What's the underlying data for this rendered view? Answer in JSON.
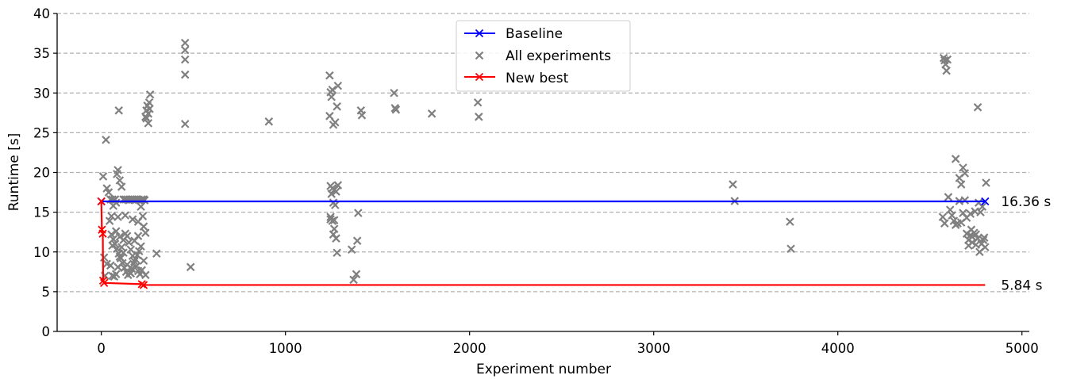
{
  "chart_data": {
    "type": "scatter",
    "xlabel": "Experiment number",
    "ylabel": "Runtime [s]",
    "xlim": [
      -240,
      5040
    ],
    "ylim": [
      0,
      40
    ],
    "x_ticks": [
      0,
      1000,
      2000,
      3000,
      4000,
      5000
    ],
    "y_ticks": [
      0,
      5,
      10,
      15,
      20,
      25,
      30,
      35,
      40
    ],
    "grid": "horizontal dashed",
    "legend_position": "top-center",
    "colors": {
      "baseline": "#0000ff",
      "all": "#808080",
      "best": "#ff0000"
    },
    "series": [
      {
        "name": "Baseline",
        "kind": "line",
        "x": [
          0,
          4800
        ],
        "y": [
          16.36,
          16.36
        ],
        "markers": [
          [
            0,
            16.36
          ],
          [
            4800,
            16.36
          ]
        ],
        "end_label": "16.36 s"
      },
      {
        "name": "All experiments",
        "kind": "scatter",
        "points": [
          [
            10,
            19.5
          ],
          [
            25,
            24.1
          ],
          [
            30,
            18.0
          ],
          [
            40,
            17.5
          ],
          [
            50,
            16.6
          ],
          [
            55,
            14.5
          ],
          [
            60,
            16.6
          ],
          [
            65,
            15.8
          ],
          [
            70,
            16.5
          ],
          [
            75,
            16.6
          ],
          [
            80,
            16.2
          ],
          [
            85,
            19.8
          ],
          [
            90,
            20.3
          ],
          [
            95,
            27.8
          ],
          [
            100,
            19.0
          ],
          [
            110,
            18.2
          ],
          [
            120,
            16.6
          ],
          [
            130,
            16.6
          ],
          [
            140,
            16.6
          ],
          [
            150,
            16.5
          ],
          [
            160,
            16.6
          ],
          [
            170,
            16.6
          ],
          [
            180,
            16.6
          ],
          [
            190,
            16.6
          ],
          [
            200,
            16.6
          ],
          [
            210,
            16.5
          ],
          [
            220,
            16.6
          ],
          [
            230,
            16.6
          ],
          [
            235,
            16.5
          ],
          [
            215,
            15.7
          ],
          [
            225,
            14.5
          ],
          [
            200,
            13.8
          ],
          [
            230,
            13.2
          ],
          [
            240,
            12.4
          ],
          [
            45,
            13.9
          ],
          [
            55,
            12.2
          ],
          [
            65,
            11.6
          ],
          [
            75,
            11.0
          ],
          [
            85,
            10.4
          ],
          [
            95,
            9.8
          ],
          [
            105,
            9.2
          ],
          [
            115,
            8.6
          ],
          [
            125,
            8.0
          ],
          [
            135,
            7.5
          ],
          [
            145,
            7.1
          ],
          [
            155,
            7.4
          ],
          [
            165,
            7.9
          ],
          [
            175,
            8.5
          ],
          [
            185,
            9.1
          ],
          [
            195,
            9.6
          ],
          [
            205,
            10.1
          ],
          [
            215,
            10.7
          ],
          [
            50,
            8.3
          ],
          [
            60,
            7.0
          ],
          [
            70,
            6.9
          ],
          [
            80,
            7.2
          ],
          [
            90,
            8.1
          ],
          [
            100,
            9.4
          ],
          [
            110,
            10.6
          ],
          [
            120,
            11.5
          ],
          [
            130,
            12.3
          ],
          [
            140,
            12.0
          ],
          [
            150,
            11.2
          ],
          [
            160,
            10.3
          ],
          [
            170,
            9.5
          ],
          [
            180,
            8.8
          ],
          [
            190,
            8.2
          ],
          [
            200,
            7.6
          ],
          [
            210,
            7.2
          ],
          [
            220,
            7.7
          ],
          [
            60,
            10.8
          ],
          [
            80,
            12.6
          ],
          [
            100,
            11.9
          ],
          [
            120,
            9.9
          ],
          [
            140,
            8.4
          ],
          [
            160,
            7.3
          ],
          [
            180,
            11.4
          ],
          [
            200,
            12.0
          ],
          [
            230,
            8.9
          ],
          [
            240,
            7.1
          ],
          [
            90,
            14.4
          ],
          [
            130,
            14.6
          ],
          [
            170,
            14.1
          ],
          [
            30,
            8.5
          ],
          [
            20,
            7.0
          ],
          [
            15,
            9.3
          ],
          [
            240,
            27.0
          ],
          [
            245,
            27.8
          ],
          [
            250,
            28.4
          ],
          [
            255,
            26.2
          ],
          [
            260,
            28.8
          ],
          [
            265,
            29.8
          ],
          [
            245,
            26.8
          ],
          [
            255,
            27.4
          ],
          [
            262,
            28.0
          ],
          [
            300,
            9.8
          ],
          [
            455,
            36.3
          ],
          [
            455,
            35.4
          ],
          [
            455,
            34.2
          ],
          [
            455,
            32.3
          ],
          [
            455,
            26.1
          ],
          [
            485,
            8.1
          ],
          [
            910,
            26.4
          ],
          [
            1240,
            32.2
          ],
          [
            1245,
            30.1
          ],
          [
            1250,
            29.5
          ],
          [
            1255,
            30.4
          ],
          [
            1240,
            27.1
          ],
          [
            1260,
            26.0
          ],
          [
            1270,
            26.3
          ],
          [
            1280,
            28.3
          ],
          [
            1285,
            30.9
          ],
          [
            1245,
            18.3
          ],
          [
            1255,
            18.0
          ],
          [
            1265,
            17.8
          ],
          [
            1275,
            17.6
          ],
          [
            1285,
            18.4
          ],
          [
            1250,
            17.3
          ],
          [
            1260,
            16.2
          ],
          [
            1270,
            15.9
          ],
          [
            1245,
            14.4
          ],
          [
            1255,
            13.9
          ],
          [
            1265,
            12.9
          ],
          [
            1275,
            11.7
          ],
          [
            1280,
            9.9
          ],
          [
            1245,
            14.1
          ],
          [
            1260,
            12.2
          ],
          [
            1265,
            14.0
          ],
          [
            1360,
            10.3
          ],
          [
            1370,
            6.5
          ],
          [
            1385,
            7.2
          ],
          [
            1390,
            11.4
          ],
          [
            1395,
            14.9
          ],
          [
            1410,
            27.8
          ],
          [
            1415,
            27.2
          ],
          [
            1590,
            30.0
          ],
          [
            1595,
            28.1
          ],
          [
            1600,
            27.9
          ],
          [
            1795,
            27.4
          ],
          [
            2045,
            28.8
          ],
          [
            2050,
            27.0
          ],
          [
            3430,
            18.5
          ],
          [
            3440,
            16.4
          ],
          [
            3740,
            13.8
          ],
          [
            3745,
            10.4
          ],
          [
            4575,
            34.4
          ],
          [
            4580,
            34.1
          ],
          [
            4585,
            33.6
          ],
          [
            4590,
            32.8
          ],
          [
            4595,
            34.2
          ],
          [
            4570,
            14.4
          ],
          [
            4580,
            13.6
          ],
          [
            4600,
            16.9
          ],
          [
            4610,
            15.3
          ],
          [
            4620,
            14.6
          ],
          [
            4630,
            13.9
          ],
          [
            4640,
            13.4
          ],
          [
            4650,
            13.6
          ],
          [
            4660,
            16.4
          ],
          [
            4670,
            13.7
          ],
          [
            4680,
            14.9
          ],
          [
            4690,
            16.5
          ],
          [
            4700,
            14.3
          ],
          [
            4640,
            21.7
          ],
          [
            4660,
            19.3
          ],
          [
            4670,
            18.5
          ],
          [
            4680,
            20.6
          ],
          [
            4690,
            19.9
          ],
          [
            4700,
            12.3
          ],
          [
            4710,
            11.5
          ],
          [
            4720,
            12.1
          ],
          [
            4730,
            11.2
          ],
          [
            4740,
            12.4
          ],
          [
            4750,
            10.9
          ],
          [
            4760,
            11.7
          ],
          [
            4770,
            10.0
          ],
          [
            4780,
            11.0
          ],
          [
            4790,
            11.5
          ],
          [
            4800,
            10.6
          ],
          [
            4710,
            10.8
          ],
          [
            4725,
            12.8
          ],
          [
            4745,
            15.1
          ],
          [
            4765,
            16.2
          ],
          [
            4775,
            15.0
          ],
          [
            4785,
            15.7
          ],
          [
            4795,
            11.8
          ],
          [
            4805,
            18.7
          ],
          [
            4760,
            28.2
          ],
          [
            4720,
            14.8
          ],
          [
            4730,
            11.9
          ],
          [
            4750,
            12.2
          ]
        ]
      },
      {
        "name": "New best",
        "kind": "step",
        "x": [
          0,
          3,
          8,
          10,
          15,
          220,
          230,
          4800
        ],
        "y": [
          16.36,
          12.8,
          12.3,
          6.4,
          6.1,
          5.95,
          5.84,
          5.84
        ],
        "markers": [
          [
            0,
            16.36
          ],
          [
            3,
            12.8
          ],
          [
            8,
            12.3
          ],
          [
            10,
            6.4
          ],
          [
            15,
            6.1
          ],
          [
            220,
            5.95
          ],
          [
            230,
            5.84
          ]
        ],
        "end_label": "5.84 s"
      }
    ]
  }
}
